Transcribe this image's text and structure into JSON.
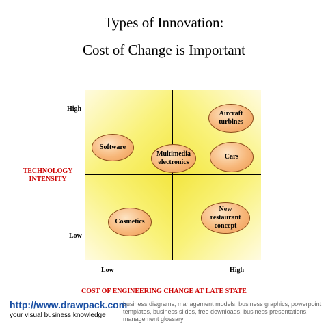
{
  "title": {
    "line1": "Types of Innovation:",
    "line2": "Cost of Change is Important"
  },
  "axes": {
    "y_label_line1": "TECHNOLOGY",
    "y_label_line2": "INTENSITY",
    "y_high": "High",
    "y_low": "Low",
    "x_label": "COST OF ENGINEERING CHANGE AT LATE STATE",
    "x_low": "Low",
    "x_high": "High"
  },
  "items": {
    "software": "Software",
    "multimedia_line1": "Multimedia",
    "multimedia_line2": "electronics",
    "aircraft_line1": "Aircraft",
    "aircraft_line2": "turbines",
    "cars": "Cars",
    "cosmetics": "Cosmetics",
    "restaurant_line1": "New restaurant",
    "restaurant_line2": "concept"
  },
  "footer": {
    "url": "http://www.drawpack.com",
    "tagline": "your visual business knowledge",
    "description": "business diagrams, management models, business graphics, powerpoint templates, business slides, free downloads, business presentations, management glossary"
  },
  "colors": {
    "quadrant_yellow": "#f8f070",
    "label_red": "#cc0000",
    "link_blue": "#1a4fa3"
  }
}
